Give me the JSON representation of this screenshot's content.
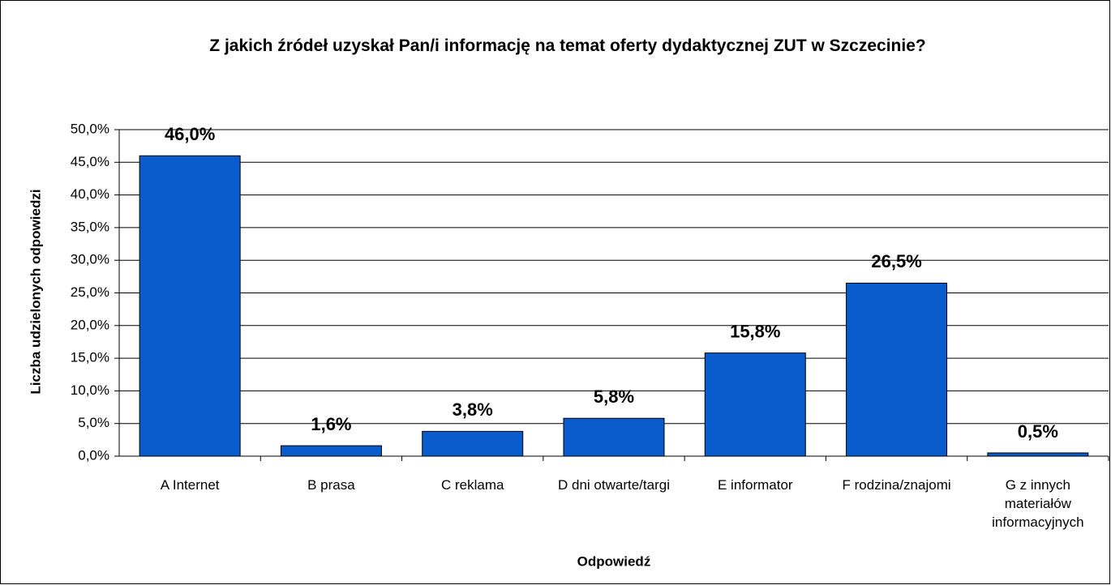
{
  "chart_data": {
    "type": "bar",
    "title": "Z jakich źródeł uzyskał Pan/i informację na temat oferty dydaktycznej ZUT w Szczecinie?",
    "xlabel": "Odpowiedź",
    "ylabel": "Liczba udzielonych odpowiedzi",
    "categories": [
      "A Internet",
      "B prasa",
      "C reklama",
      "D dni otwarte/targi",
      "E informator",
      "F rodzina/znajomi",
      "G z innych materiałów informacyjnych"
    ],
    "values": [
      46.0,
      1.6,
      3.8,
      5.8,
      15.8,
      26.5,
      0.5
    ],
    "value_labels": [
      "46,0%",
      "1,6%",
      "3,8%",
      "5,8%",
      "15,8%",
      "26,5%",
      "0,5%"
    ],
    "color": "#0a5ccc",
    "ylim": [
      0,
      50
    ],
    "yticks": [
      {
        "value": 0,
        "label": "0,0%"
      },
      {
        "value": 5,
        "label": "5,0%"
      },
      {
        "value": 10,
        "label": "10,0%"
      },
      {
        "value": 15,
        "label": "15,0%"
      },
      {
        "value": 20,
        "label": "20,0%"
      },
      {
        "value": 25,
        "label": "25,0%"
      },
      {
        "value": 30,
        "label": "30,0%"
      },
      {
        "value": 35,
        "label": "35,0%"
      },
      {
        "value": 40,
        "label": "40,0%"
      },
      {
        "value": 45,
        "label": "45,0%"
      },
      {
        "value": 50,
        "label": "50,0%"
      }
    ],
    "grid": true
  }
}
